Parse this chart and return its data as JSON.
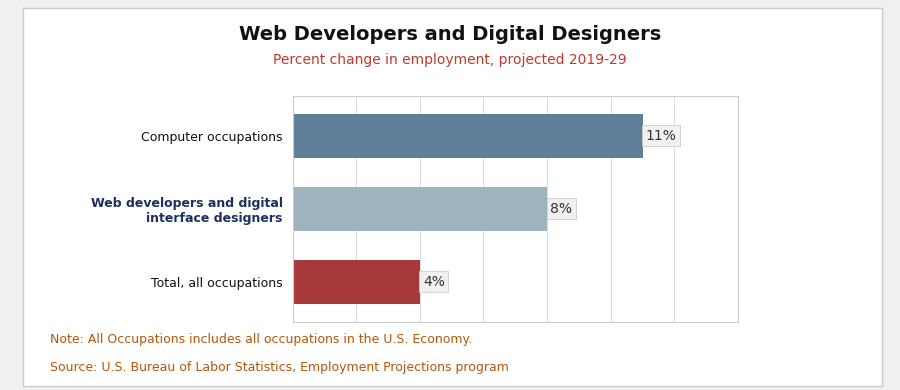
{
  "title": "Web Developers and Digital Designers",
  "subtitle": "Percent change in employment, projected 2019-29",
  "categories": [
    "Computer occupations",
    "Web developers and digital\ninterface designers",
    "Total, all occupations"
  ],
  "values": [
    11,
    8,
    4
  ],
  "bar_colors": [
    "#5f7f96",
    "#9eb3be",
    "#a8393a"
  ],
  "label_texts": [
    "11%",
    "8%",
    "4%"
  ],
  "note_text": "Note: All Occupations includes all occupations in the U.S. Economy.",
  "source_text": "Source: U.S. Bureau of Labor Statistics, Employment Projections program",
  "xlim": [
    0,
    14
  ],
  "title_fontsize": 14,
  "subtitle_fontsize": 10,
  "subtitle_color": "#c0392b",
  "label_fontsize": 10,
  "note_fontsize": 9,
  "note_color": "#b8560a",
  "background_color": "#ffffff",
  "plot_bg_color": "#ffffff",
  "bar_height": 0.6,
  "figure_bg": "#f0f0f0"
}
